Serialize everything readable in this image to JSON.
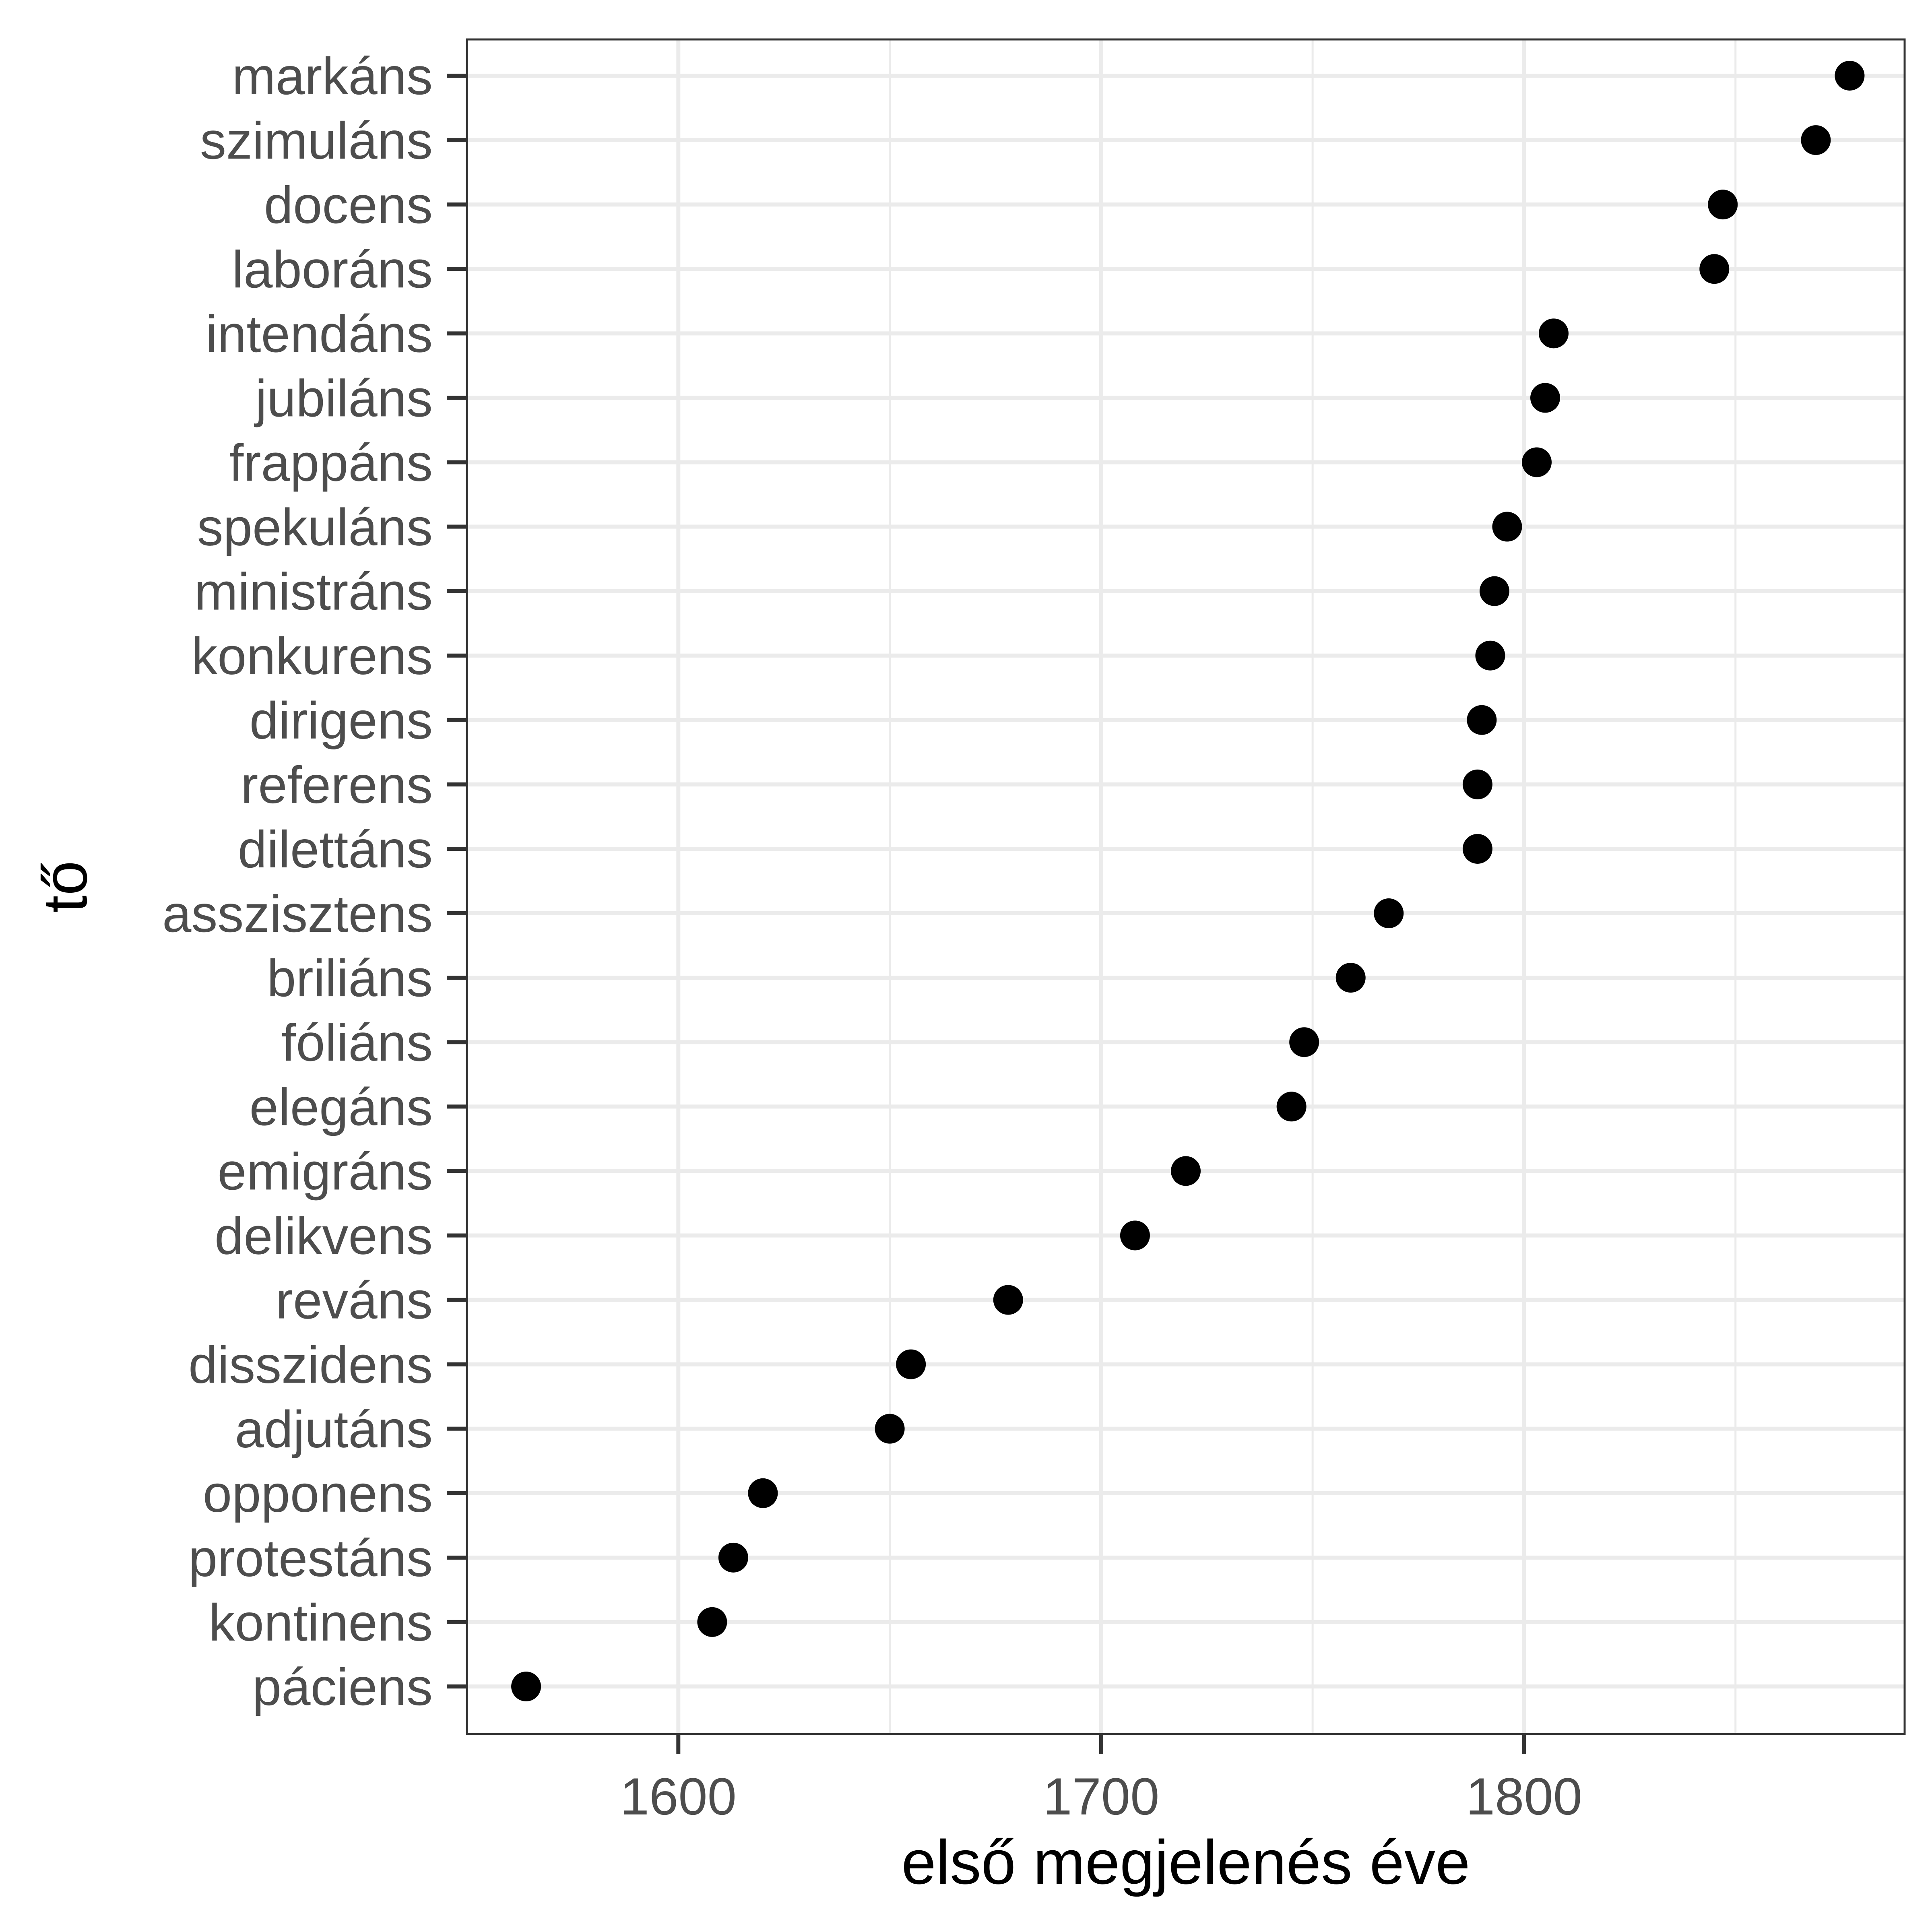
{
  "chart_data": {
    "type": "scatter",
    "xlabel": "első megjelenés éve",
    "ylabel": "tő",
    "xlim": [
      1550,
      1890
    ],
    "x_ticks": [
      1600,
      1700,
      1800
    ],
    "grid": true,
    "point_color": "#000000",
    "points": [
      {
        "label": "markáns",
        "x": 1877
      },
      {
        "label": "szimuláns",
        "x": 1869
      },
      {
        "label": "docens",
        "x": 1847
      },
      {
        "label": "laboráns",
        "x": 1845
      },
      {
        "label": "intendáns",
        "x": 1807
      },
      {
        "label": "jubiláns",
        "x": 1805
      },
      {
        "label": "frappáns",
        "x": 1803
      },
      {
        "label": "spekuláns",
        "x": 1796
      },
      {
        "label": "ministráns",
        "x": 1793
      },
      {
        "label": "konkurens",
        "x": 1792
      },
      {
        "label": "dirigens",
        "x": 1790
      },
      {
        "label": "referens",
        "x": 1789
      },
      {
        "label": "dilettáns",
        "x": 1789
      },
      {
        "label": "asszisztens",
        "x": 1768
      },
      {
        "label": "briliáns",
        "x": 1759
      },
      {
        "label": "fóliáns",
        "x": 1748
      },
      {
        "label": "elegáns",
        "x": 1745
      },
      {
        "label": "emigráns",
        "x": 1720
      },
      {
        "label": "delikvens",
        "x": 1708
      },
      {
        "label": "reváns",
        "x": 1678
      },
      {
        "label": "disszidens",
        "x": 1655
      },
      {
        "label": "adjutáns",
        "x": 1650
      },
      {
        "label": "opponens",
        "x": 1620
      },
      {
        "label": "protestáns",
        "x": 1613
      },
      {
        "label": "kontinens",
        "x": 1608
      },
      {
        "label": "páciens",
        "x": 1564
      }
    ]
  }
}
